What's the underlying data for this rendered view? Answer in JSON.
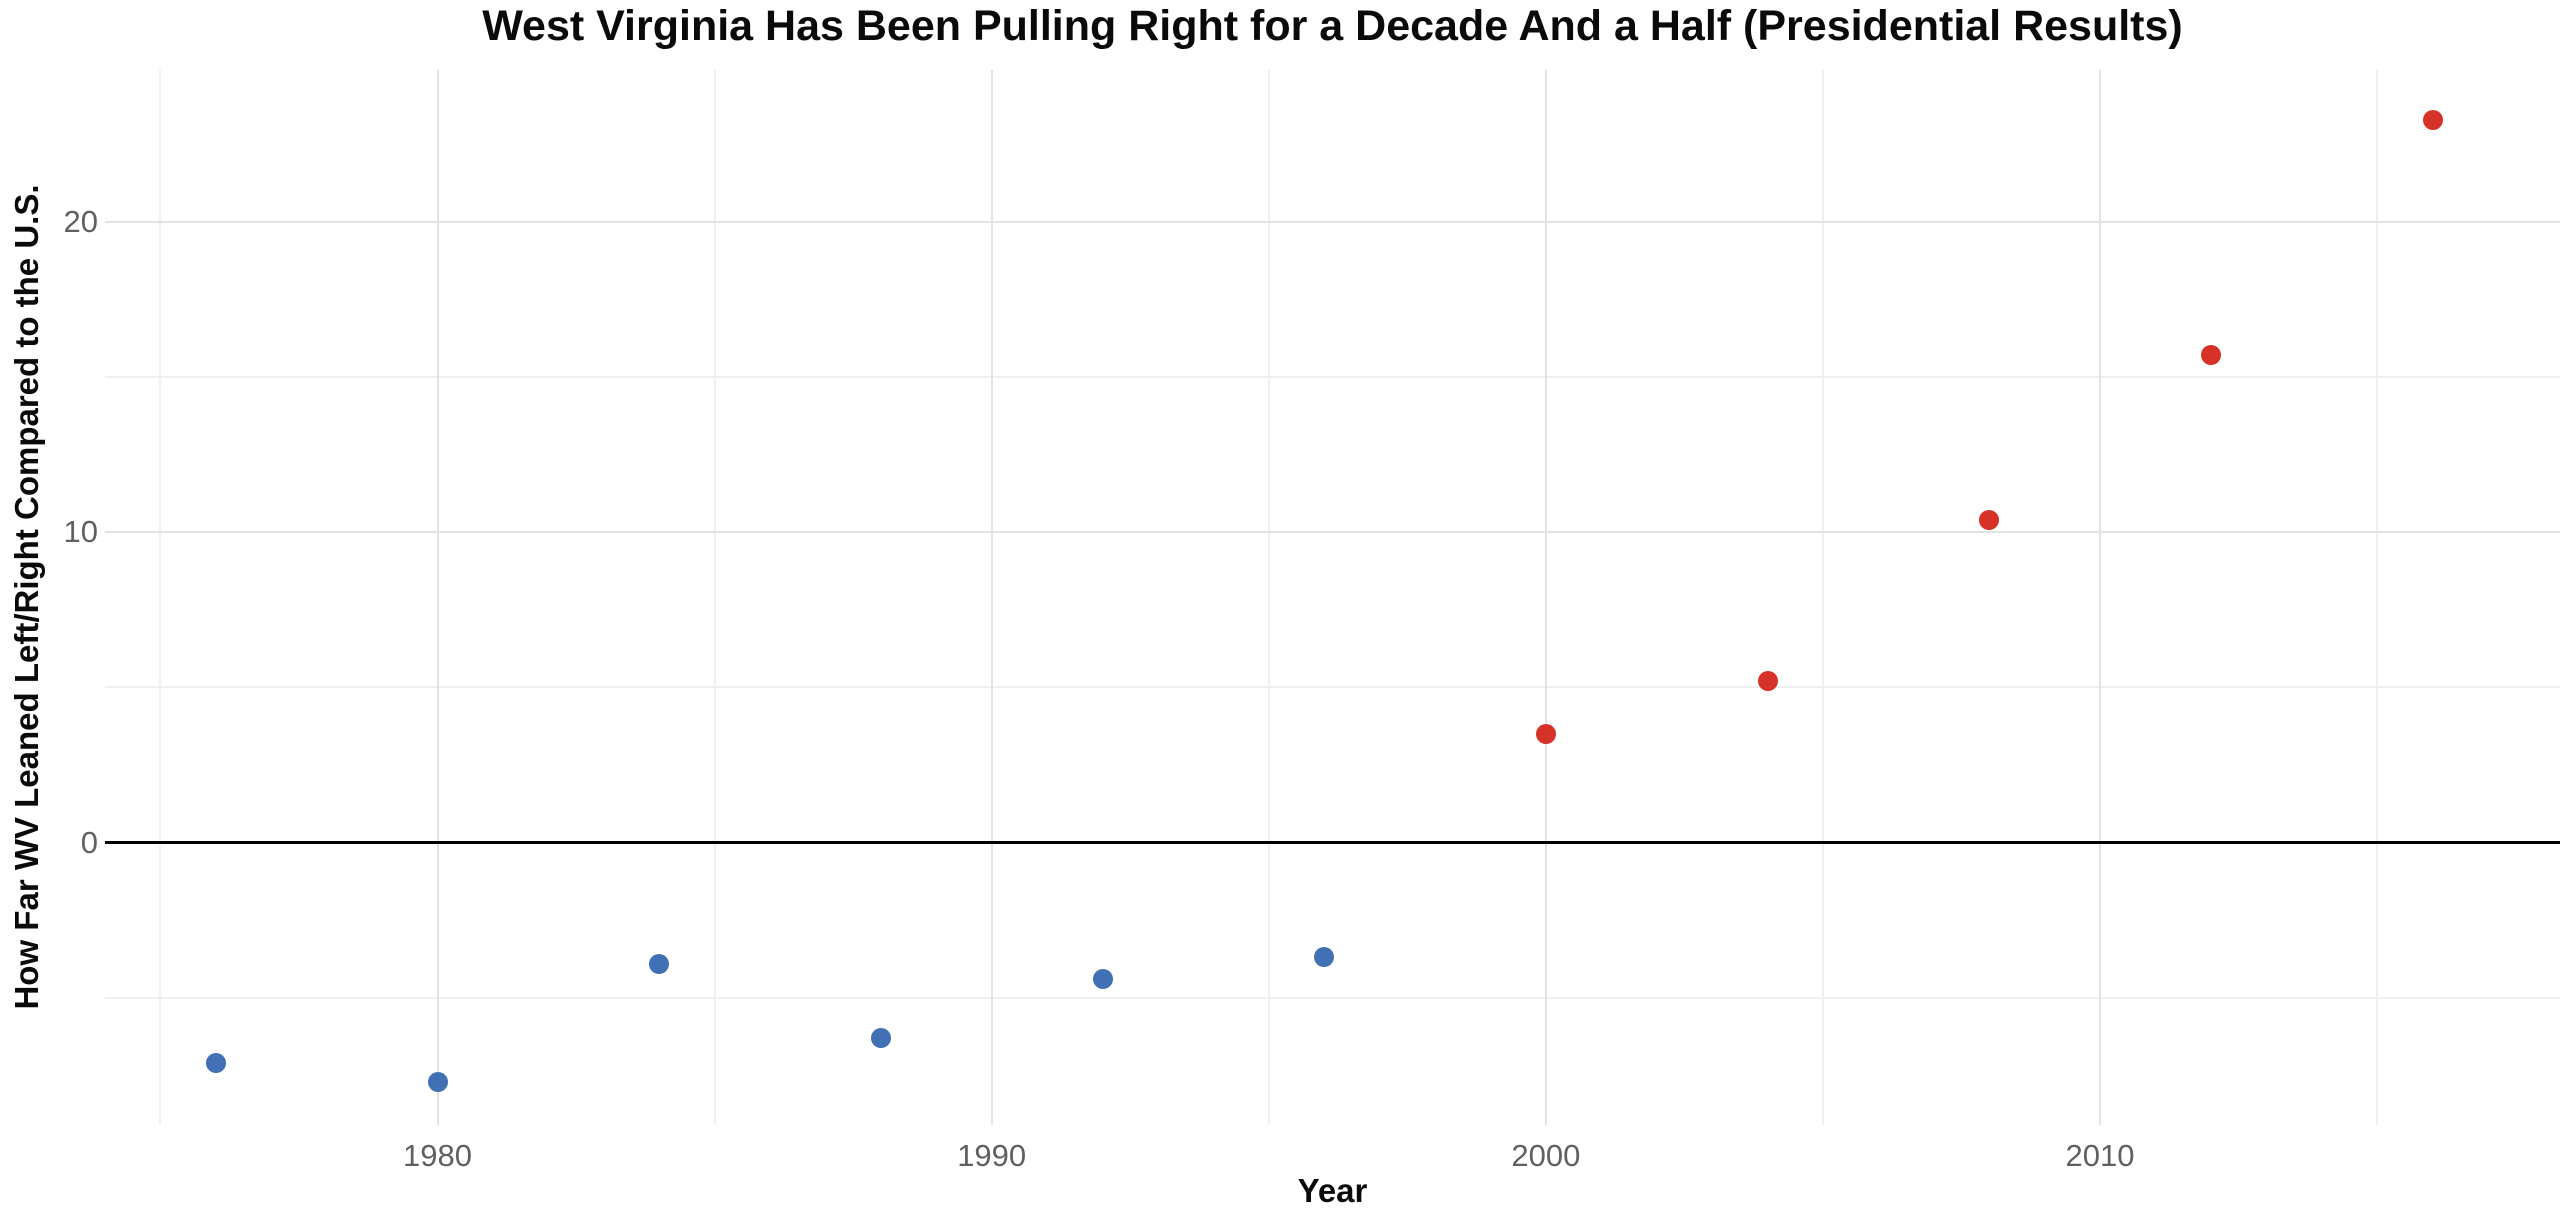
{
  "chart_data": {
    "type": "scatter",
    "title": "West Virginia Has Been Pulling Right for a Decade And a Half (Presidential Results)",
    "xlabel": "Year",
    "ylabel": "How Far WV Leaned Left/Right Compared to the U.S.",
    "xlim": [
      1974.0,
      2018.3
    ],
    "ylim": [
      -9.1,
      24.9
    ],
    "x_ticks": [
      1980,
      1990,
      2000,
      2010
    ],
    "x_minor_gridlines": [
      1975,
      1985,
      1995,
      2005,
      2015
    ],
    "y_ticks": [
      0,
      10,
      20
    ],
    "y_minor_gridlines": [
      -5,
      5,
      15
    ],
    "grid": "on",
    "legend": "none",
    "zero_line": {
      "y": 0,
      "color": "#000000"
    },
    "series": [
      {
        "name": "blue-points",
        "color": "#4170b4",
        "points": [
          {
            "year": 1976,
            "value": -7.1
          },
          {
            "year": 1980,
            "value": -7.7
          },
          {
            "year": 1984,
            "value": -3.9
          },
          {
            "year": 1988,
            "value": -6.3
          },
          {
            "year": 1992,
            "value": -4.4
          },
          {
            "year": 1996,
            "value": -3.7
          }
        ]
      },
      {
        "name": "red-points",
        "color": "#d63228",
        "points": [
          {
            "year": 2000,
            "value": 3.5
          },
          {
            "year": 2004,
            "value": 5.2
          },
          {
            "year": 2008,
            "value": 10.4
          },
          {
            "year": 2012,
            "value": 15.7
          },
          {
            "year": 2016,
            "value": 23.3
          }
        ]
      }
    ],
    "colors": {
      "major_gridline": "#e3e3e3",
      "minor_gridline": "#f0f0f0",
      "tick_text": "#606060",
      "title_text": "#0a0a0a"
    }
  }
}
